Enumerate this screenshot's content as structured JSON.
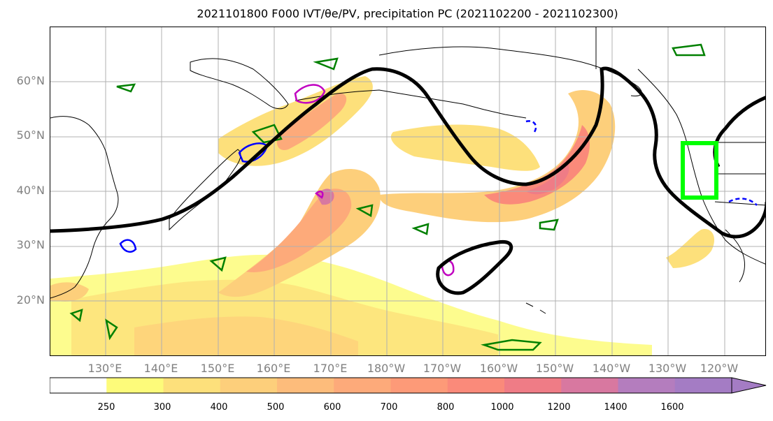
{
  "title": "2021101800 F000 IVT/θe/PV, precipitation PC (2021102200 - 2021102300)",
  "lat_labels": [
    "60°N",
    "50°N",
    "40°N",
    "30°N",
    "20°N"
  ],
  "lon_labels": [
    "130°E",
    "140°E",
    "150°E",
    "160°E",
    "170°E",
    "180°W",
    "170°W",
    "160°W",
    "150°W",
    "140°W",
    "130°W",
    "120°W"
  ],
  "colorbar": {
    "levels": [
      "250",
      "300",
      "400",
      "500",
      "600",
      "700",
      "800",
      "1000",
      "1200",
      "1400",
      "1600"
    ],
    "colors": [
      "#ffffff",
      "#fdfb7a",
      "#fde07b",
      "#fdcf7b",
      "#fdbc7b",
      "#fdaa7a",
      "#fd9a78",
      "#fa8a7a",
      "#ef7c86",
      "#d878a0",
      "#b47dbe",
      "#a47cc4"
    ]
  },
  "highlight_box_color": "#00ff00"
}
